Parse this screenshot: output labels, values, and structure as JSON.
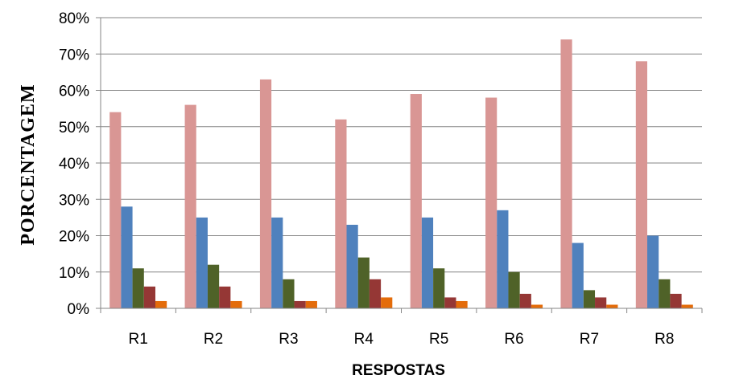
{
  "chart_data": {
    "type": "bar",
    "title": "",
    "xlabel": "RESPOSTAS",
    "ylabel": "PORCENTAGEM",
    "ylim": [
      0,
      80
    ],
    "yticks": [
      0,
      10,
      20,
      30,
      40,
      50,
      60,
      70,
      80
    ],
    "ytick_labels": [
      "0%",
      "10%",
      "20%",
      "30%",
      "40%",
      "50%",
      "60%",
      "70%",
      "80%"
    ],
    "grid": true,
    "legend": "none",
    "categories": [
      "R1",
      "R2",
      "R3",
      "R4",
      "R5",
      "R6",
      "R7",
      "R8"
    ],
    "series": [
      {
        "color": "#D99694",
        "values": [
          54,
          56,
          63,
          52,
          59,
          58,
          74,
          68
        ]
      },
      {
        "color": "#4F81BD",
        "values": [
          28,
          25,
          25,
          23,
          25,
          27,
          18,
          20
        ]
      },
      {
        "color": "#4F6228",
        "values": [
          11,
          12,
          8,
          14,
          11,
          10,
          5,
          8
        ]
      },
      {
        "color": "#953735",
        "values": [
          6,
          6,
          2,
          8,
          3,
          4,
          3,
          4
        ]
      },
      {
        "color": "#E46C0A",
        "values": [
          2,
          2,
          2,
          3,
          2,
          1,
          1,
          1
        ]
      }
    ]
  }
}
